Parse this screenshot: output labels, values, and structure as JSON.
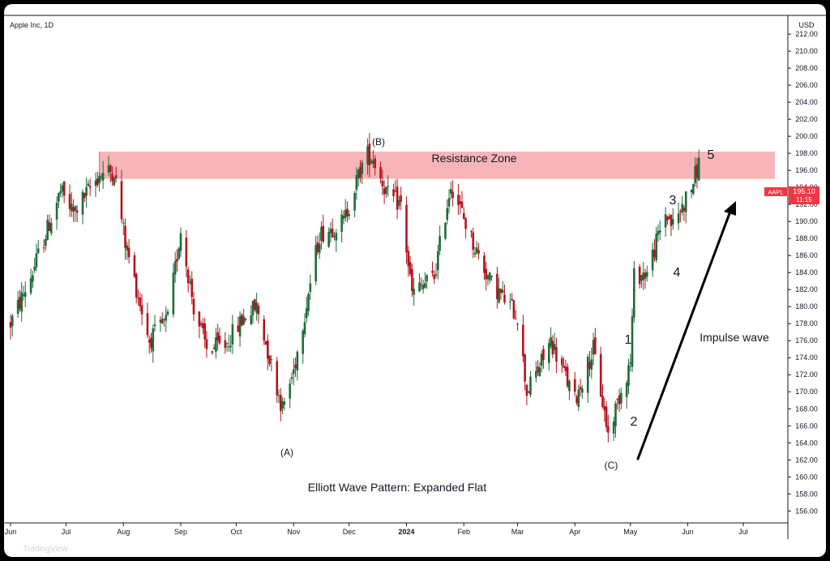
{
  "footer": {
    "brand": "TradingView",
    "logo_icon": "tradingview-logo-icon"
  },
  "chart_data": {
    "type": "candlestick",
    "title": "Apple Inc, 1D",
    "currency_label": "USD",
    "ylim": [
      154.6,
      214.2
    ],
    "y_ticks": [
      "156.00",
      "158.00",
      "160.00",
      "162.00",
      "164.00",
      "166.00",
      "168.00",
      "170.00",
      "172.00",
      "174.00",
      "176.00",
      "178.00",
      "180.00",
      "182.00",
      "184.00",
      "186.00",
      "188.00",
      "190.00",
      "192.00",
      "194.00",
      "196.00",
      "198.00",
      "200.00",
      "202.00",
      "204.00",
      "206.00",
      "208.00",
      "210.00",
      "212.00"
    ],
    "x_ticks": [
      "Jun",
      "Jul",
      "Aug",
      "Sep",
      "Oct",
      "Nov",
      "Dec",
      "2024",
      "Feb",
      "Mar",
      "Apr",
      "May",
      "Jun",
      "Jul"
    ],
    "x_ticks_bold": [
      "2024"
    ],
    "price_label": {
      "symbol": "AAPL",
      "value": "195.10",
      "countdown": "11:15",
      "color": "#f23645"
    },
    "resistance_zone": {
      "label": "Resistance Zone",
      "from": 195.0,
      "to": 198.2,
      "start": "Jul 19",
      "color": "#f7a8ad"
    },
    "wave_labels": [
      "(A)",
      "(B)",
      "(C)",
      "1",
      "2",
      "3",
      "4",
      "5"
    ],
    "annotations": {
      "impulse": "Impulse wave",
      "pattern": "Elliott Wave Pattern: Expanded Flat"
    },
    "up_color": "#1f6b3a",
    "down_color": "#b5141d",
    "anchors": [
      [
        "Jun 1",
        178.0
      ],
      [
        "Jun 12",
        183.5
      ],
      [
        "Jun 28",
        193.5
      ],
      [
        "Jul 5",
        191.0
      ],
      [
        "Jul 19",
        195.5
      ],
      [
        "Jul 27",
        196.0
      ],
      [
        "Aug 2",
        187.5
      ],
      [
        "Aug 15",
        176.0
      ],
      [
        "Aug 25",
        178.5
      ],
      [
        "Sep 1",
        189.0
      ],
      [
        "Sep 8",
        180.0
      ],
      [
        "Sep 15",
        175.0
      ],
      [
        "Sep 25",
        175.5
      ],
      [
        "Oct 6",
        179.0
      ],
      [
        "Oct 12",
        180.0
      ],
      [
        "Oct 26",
        168.0
      ],
      [
        "Nov 1",
        172.5
      ],
      [
        "Nov 15",
        188.5
      ],
      [
        "Nov 28",
        190.0
      ],
      [
        "Dec 10",
        198.0
      ],
      [
        "Dec 14",
        197.5
      ],
      [
        "Dec 22",
        193.0
      ],
      [
        "Dec 29",
        192.0
      ],
      [
        "Jan 4",
        181.5
      ],
      [
        "Jan 16",
        183.5
      ],
      [
        "Jan 25",
        194.5
      ],
      [
        "Feb 5",
        188.0
      ],
      [
        "Feb 15",
        183.0
      ],
      [
        "Mar 1",
        179.0
      ],
      [
        "Mar 6",
        170.0
      ],
      [
        "Mar 12",
        172.5
      ],
      [
        "Mar 19",
        176.0
      ],
      [
        "Apr 1",
        169.0
      ],
      [
        "Apr 11",
        175.0
      ],
      [
        "Apr 19",
        165.0
      ],
      [
        "Apr 25",
        169.5
      ],
      [
        "May 1",
        173.5
      ],
      [
        "May 3",
        183.5
      ],
      [
        "May 10",
        184.0
      ],
      [
        "May 20",
        191.0
      ],
      [
        "May 24",
        189.5
      ],
      [
        "Jun 3",
        194.0
      ],
      [
        "Jun 7",
        196.8
      ],
      [
        "Jun 9",
        195.1
      ]
    ]
  }
}
